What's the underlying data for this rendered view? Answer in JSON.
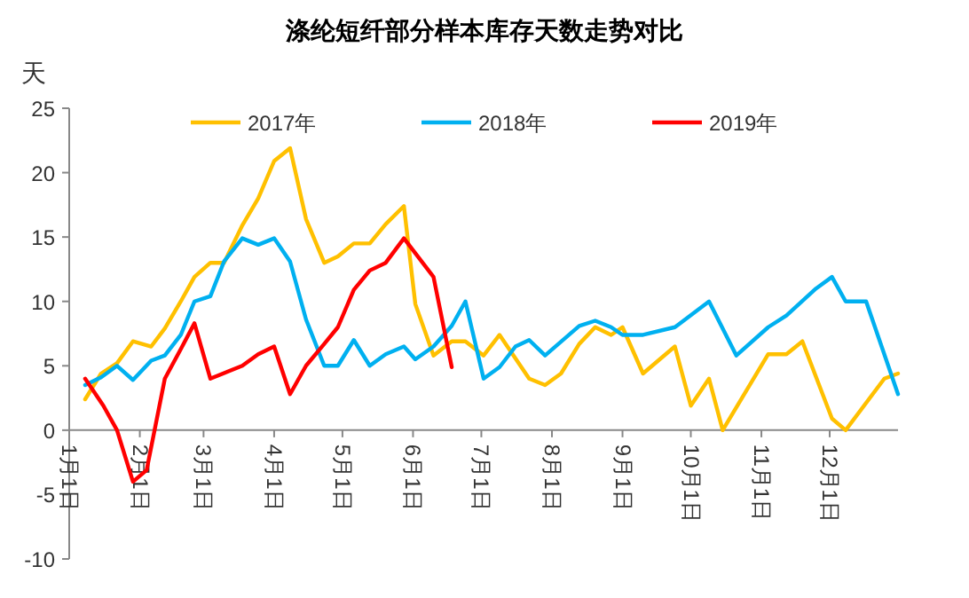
{
  "chart_data": {
    "type": "line",
    "title": "涤纶短纤部分样本库存天数走势对比",
    "ylabel": "天",
    "legend": "top",
    "grid": false,
    "marker": "none",
    "line_style": "solid",
    "ylim": [
      -10,
      25
    ],
    "yticks": [
      -10,
      -5,
      0,
      5,
      10,
      15,
      20,
      25
    ],
    "xlim": [
      "--01-01",
      "--12-31"
    ],
    "xticks": [
      {
        "value": "--01-01",
        "label": "1月1日"
      },
      {
        "value": "--02-01",
        "label": "2月1日"
      },
      {
        "value": "--03-01",
        "label": "3月1日"
      },
      {
        "value": "--04-01",
        "label": "4月1日"
      },
      {
        "value": "--05-01",
        "label": "5月1日"
      },
      {
        "value": "--06-01",
        "label": "6月1日"
      },
      {
        "value": "--07-01",
        "label": "7月1日"
      },
      {
        "value": "--08-01",
        "label": "8月1日"
      },
      {
        "value": "--09-01",
        "label": "9月1日"
      },
      {
        "value": "--10-01",
        "label": "10月1日"
      },
      {
        "value": "--11-01",
        "label": "11月1日"
      },
      {
        "value": "--12-01",
        "label": "12月1日"
      }
    ],
    "series": [
      {
        "name": "2017年",
        "color": "#ffc000",
        "x": [
          "--01-08",
          "--01-15",
          "--01-22",
          "--01-29",
          "--02-06",
          "--02-12",
          "--02-19",
          "--02-25",
          "--03-04",
          "--03-10",
          "--03-18",
          "--03-25",
          "--04-01",
          "--04-08",
          "--04-15",
          "--04-23",
          "--04-29",
          "--05-06",
          "--05-13",
          "--05-20",
          "--05-28",
          "--06-02",
          "--06-10",
          "--06-18",
          "--06-24",
          "--07-02",
          "--07-09",
          "--07-22",
          "--07-29",
          "--08-05",
          "--08-13",
          "--08-20",
          "--08-27",
          "--09-01",
          "--09-10",
          "--09-24",
          "--10-01",
          "--10-09",
          "--10-15",
          "--11-04",
          "--11-12",
          "--11-19",
          "--12-02",
          "--12-08",
          "--12-25",
          "--12-31"
        ],
        "values": [
          2.4,
          4.4,
          5.2,
          6.9,
          6.5,
          7.9,
          10,
          11.9,
          13,
          13,
          15.9,
          18,
          20.9,
          21.9,
          16.4,
          13,
          13.5,
          14.5,
          14.5,
          16,
          17.4,
          9.8,
          5.8,
          6.9,
          6.9,
          5.8,
          7.4,
          4,
          3.5,
          4.4,
          6.7,
          8,
          7.4,
          8,
          4.4,
          6.5,
          1.9,
          4,
          0,
          5.9,
          5.9,
          6.9,
          0.9,
          0,
          4,
          4.4
        ]
      },
      {
        "name": "2018年",
        "color": "#00b0f0",
        "x": [
          "--01-08",
          "--01-15",
          "--01-22",
          "--01-29",
          "--02-06",
          "--02-12",
          "--02-19",
          "--02-25",
          "--03-04",
          "--03-10",
          "--03-18",
          "--03-25",
          "--04-01",
          "--04-08",
          "--04-15",
          "--04-23",
          "--04-29",
          "--05-06",
          "--05-13",
          "--05-20",
          "--05-28",
          "--06-02",
          "--06-10",
          "--06-18",
          "--06-24",
          "--07-02",
          "--07-09",
          "--07-16",
          "--07-22",
          "--07-29",
          "--08-13",
          "--08-20",
          "--08-27",
          "--09-01",
          "--09-10",
          "--09-24",
          "--10-09",
          "--10-21",
          "--11-04",
          "--11-12",
          "--11-25",
          "--12-02",
          "--12-08",
          "--12-17",
          "--12-31"
        ],
        "values": [
          3.5,
          4.1,
          5,
          3.9,
          5.4,
          5.8,
          7.4,
          10,
          10.4,
          13.1,
          14.9,
          14.4,
          14.9,
          13.1,
          8.6,
          5,
          5,
          7,
          5,
          5.9,
          6.5,
          5.5,
          6.5,
          8.1,
          10,
          4,
          4.9,
          6.5,
          7,
          5.8,
          8.1,
          8.5,
          8,
          7.4,
          7.4,
          8,
          10,
          5.8,
          8,
          8.9,
          11,
          11.9,
          10,
          10,
          2.8
        ]
      },
      {
        "name": "2019年",
        "color": "#ff0000",
        "x": [
          "--01-08",
          "--01-16",
          "--01-22",
          "--01-29",
          "--02-04",
          "--02-12",
          "--02-19",
          "--02-25",
          "--03-04",
          "--03-18",
          "--03-25",
          "--04-01",
          "--04-08",
          "--04-15",
          "--04-23",
          "--04-29",
          "--05-06",
          "--05-13",
          "--05-20",
          "--05-28",
          "--06-10",
          "--06-18"
        ],
        "values": [
          4,
          1.9,
          0,
          -4,
          -3.1,
          4,
          6.3,
          8.3,
          4,
          5,
          5.9,
          6.5,
          2.8,
          5,
          6.7,
          8,
          10.9,
          12.4,
          13,
          14.9,
          11.9,
          4.9
        ]
      }
    ]
  }
}
